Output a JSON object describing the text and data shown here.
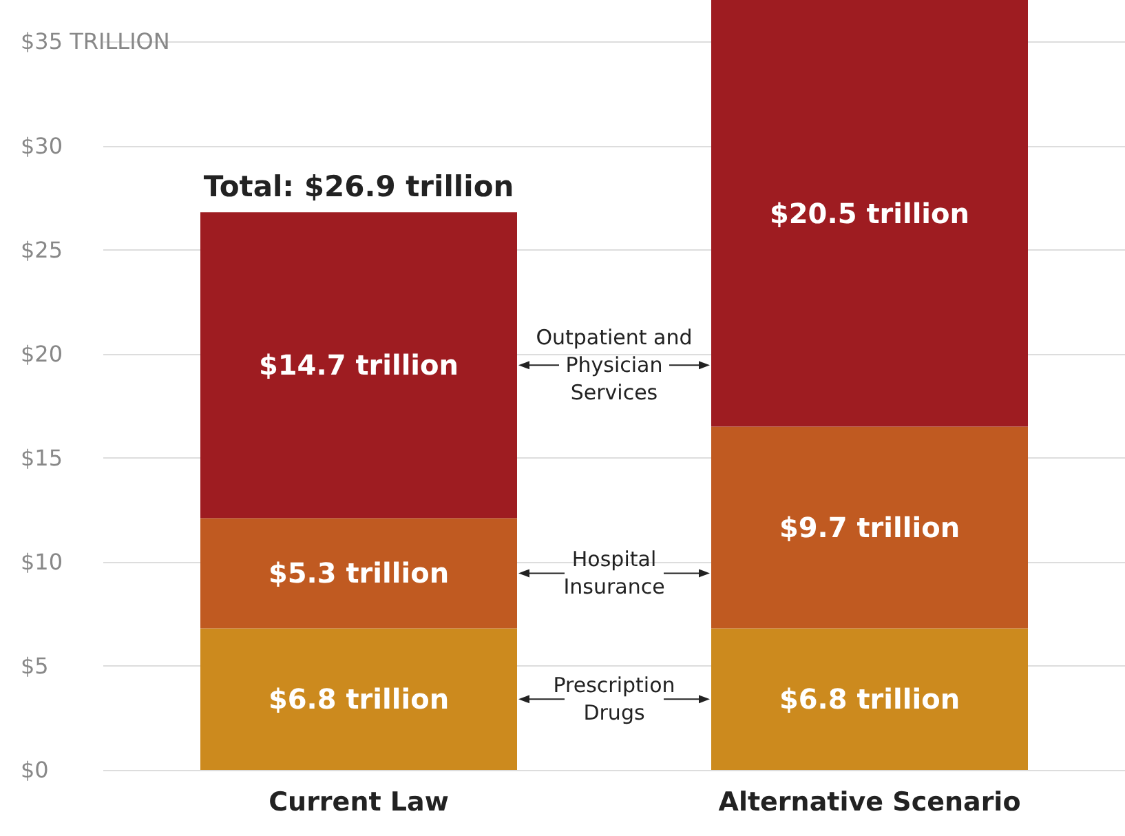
{
  "chart_data": {
    "type": "bar",
    "stacked": true,
    "categories": [
      "Current Law",
      "Alternative Scenario"
    ],
    "series": [
      {
        "name": "Prescription Drugs",
        "color": "#cc8a1e",
        "values": [
          6.8,
          6.8
        ],
        "value_labels": [
          "$6.8 trillion",
          "$6.8 trillion"
        ]
      },
      {
        "name": "Hospital Insurance",
        "color": "#c05a21",
        "values": [
          5.3,
          9.7
        ],
        "value_labels": [
          "$5.3 trillion",
          "$9.7 trillion"
        ]
      },
      {
        "name": "Outpatient and Physician Services",
        "color": "#9e1c21",
        "values": [
          14.7,
          20.5
        ],
        "value_labels": [
          "$14.7 trillion",
          "$20.5 trillion"
        ]
      }
    ],
    "totals": [
      "Total: $26.9 trillion",
      null
    ],
    "ylim": [
      0,
      37
    ],
    "yticks": [
      {
        "value": 0,
        "label": "$0"
      },
      {
        "value": 5,
        "label": "$5"
      },
      {
        "value": 10,
        "label": "$10"
      },
      {
        "value": 15,
        "label": "$15"
      },
      {
        "value": 20,
        "label": "$20"
      },
      {
        "value": 25,
        "label": "$25"
      },
      {
        "value": 30,
        "label": "$30"
      },
      {
        "value": 35,
        "label": "$35 TRILLION"
      }
    ],
    "grid": "y",
    "legend": "center"
  }
}
